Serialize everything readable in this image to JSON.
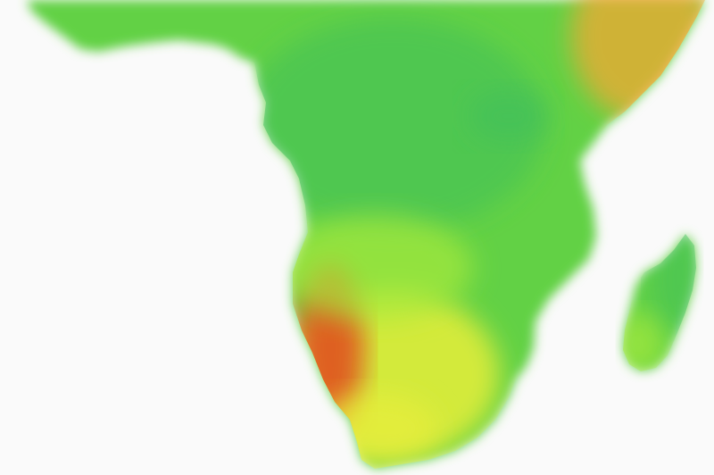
{
  "map": {
    "region": "southern-and-central-africa",
    "background_color": "#fafafa",
    "palette": {
      "deep_green": "#3fbf5a",
      "green": "#62d145",
      "lime": "#a6ea3a",
      "yellow": "#e8ee3a",
      "orange": "#f4a833",
      "red_orange": "#e0521e"
    },
    "features": [
      {
        "name": "african-mainland",
        "fill_role": "green"
      },
      {
        "name": "madagascar",
        "fill_role": "green"
      },
      {
        "name": "namib-coast-hotspot",
        "fill_role": "red_orange"
      },
      {
        "name": "kalahari-warm-zone",
        "fill_role": "yellow"
      },
      {
        "name": "horn-of-africa-warm-zone",
        "fill_role": "orange"
      },
      {
        "name": "congo-basin-cool-zone",
        "fill_role": "deep_green"
      }
    ]
  }
}
